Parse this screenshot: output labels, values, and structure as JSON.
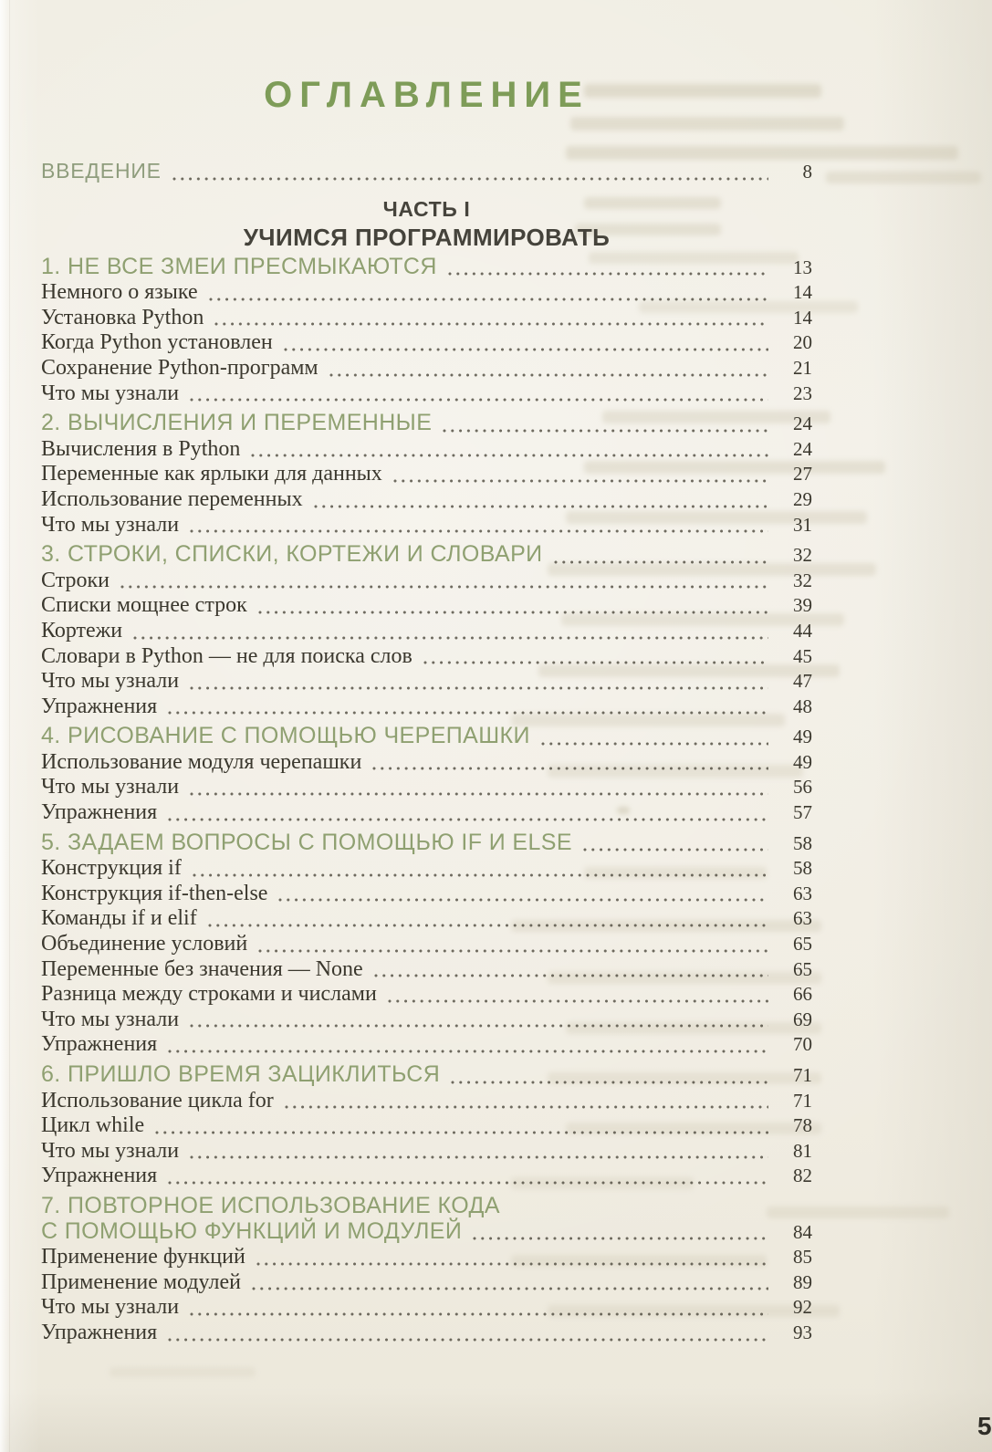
{
  "toc": {
    "title": "ОГЛАВЛЕНИЕ",
    "book_page_number": "5",
    "colors": {
      "paper": "#f2efe6",
      "title_green": "#7e9c58",
      "chapter_green": "#8fa071",
      "intro_green": "#8f9d7d",
      "part_dark": "#46443c",
      "text_dark": "#3b382e"
    },
    "rows": [
      {
        "type": "intro",
        "label": "ВВЕДЕНИЕ",
        "page": "8"
      },
      {
        "type": "part",
        "label": "ЧАСТЬ I"
      },
      {
        "type": "part-sub",
        "label": "УЧИМСЯ ПРОГРАММИРОВАТЬ"
      },
      {
        "type": "chapter",
        "label": "1. НЕ ВСЕ ЗМЕИ ПРЕСМЫКАЮТСЯ",
        "page": "13"
      },
      {
        "type": "item",
        "label": "Немного о языке",
        "page": "14"
      },
      {
        "type": "item",
        "label": "Установка Python",
        "page": "14"
      },
      {
        "type": "item",
        "label": "Когда Python установлен",
        "page": "20"
      },
      {
        "type": "item",
        "label": "Сохранение Python-программ",
        "page": "21"
      },
      {
        "type": "item",
        "label": "Что мы узнали",
        "page": "23"
      },
      {
        "type": "chapter",
        "label": "2. ВЫЧИСЛЕНИЯ И ПЕРЕМЕННЫЕ",
        "page": "24"
      },
      {
        "type": "item",
        "label": "Вычисления в Python",
        "page": "24"
      },
      {
        "type": "item",
        "label": "Переменные как ярлыки для данных",
        "page": "27"
      },
      {
        "type": "item",
        "label": "Использование переменных",
        "page": "29"
      },
      {
        "type": "item",
        "label": "Что мы узнали",
        "page": "31"
      },
      {
        "type": "chapter",
        "label": "3. СТРОКИ, СПИСКИ, КОРТЕЖИ И СЛОВАРИ",
        "page": "32"
      },
      {
        "type": "item",
        "label": "Строки",
        "page": "32"
      },
      {
        "type": "item",
        "label": "Списки мощнее строк",
        "page": "39"
      },
      {
        "type": "item",
        "label": "Кортежи",
        "page": "44"
      },
      {
        "type": "item",
        "label": "Словари в Python — не для поиска слов",
        "page": "45"
      },
      {
        "type": "item",
        "label": "Что мы узнали",
        "page": "47"
      },
      {
        "type": "item",
        "label": "Упражнения",
        "page": "48"
      },
      {
        "type": "chapter",
        "label": "4. РИСОВАНИЕ С ПОМОЩЬЮ ЧЕРЕПАШКИ",
        "page": "49"
      },
      {
        "type": "item",
        "label": "Использование модуля черепашки",
        "page": "49"
      },
      {
        "type": "item",
        "label": "Что мы узнали",
        "page": "56"
      },
      {
        "type": "item",
        "label": "Упражнения",
        "page": "57"
      },
      {
        "type": "chapter",
        "label": "5. ЗАДАЕМ ВОПРОСЫ С ПОМОЩЬЮ IF И ELSE",
        "page": "58"
      },
      {
        "type": "item",
        "label": "Конструкция if",
        "page": "58"
      },
      {
        "type": "item",
        "label": "Конструкция if-then-else",
        "page": "63"
      },
      {
        "type": "item",
        "label": "Команды if и elif",
        "page": "63"
      },
      {
        "type": "item",
        "label": "Объединение условий",
        "page": "65"
      },
      {
        "type": "item",
        "label": "Переменные без значения — None",
        "page": "65"
      },
      {
        "type": "item",
        "label": "Разница между строками и числами",
        "page": "66"
      },
      {
        "type": "item",
        "label": "Что мы узнали",
        "page": "69"
      },
      {
        "type": "item",
        "label": "Упражнения",
        "page": "70"
      },
      {
        "type": "chapter",
        "label": "6. ПРИШЛО ВРЕМЯ ЗАЦИКЛИТЬСЯ",
        "page": "71"
      },
      {
        "type": "item",
        "label": "Использование цикла for",
        "page": "71"
      },
      {
        "type": "item",
        "label": "Цикл while",
        "page": "78"
      },
      {
        "type": "item",
        "label": "Что мы узнали",
        "page": "81"
      },
      {
        "type": "item",
        "label": "Упражнения",
        "page": "82"
      },
      {
        "type": "chapter-line1",
        "label": "7. ПОВТОРНОЕ ИСПОЛЬЗОВАНИЕ КОДА"
      },
      {
        "type": "chapter-cont",
        "label": "С ПОМОЩЬЮ ФУНКЦИЙ И МОДУЛЕЙ",
        "page": "84"
      },
      {
        "type": "item",
        "label": "Применение функций",
        "page": "85"
      },
      {
        "type": "item",
        "label": "Применение модулей",
        "page": "89"
      },
      {
        "type": "item",
        "label": "Что мы узнали",
        "page": "92"
      },
      {
        "type": "item",
        "label": "Упражнения",
        "page": "93"
      }
    ]
  }
}
